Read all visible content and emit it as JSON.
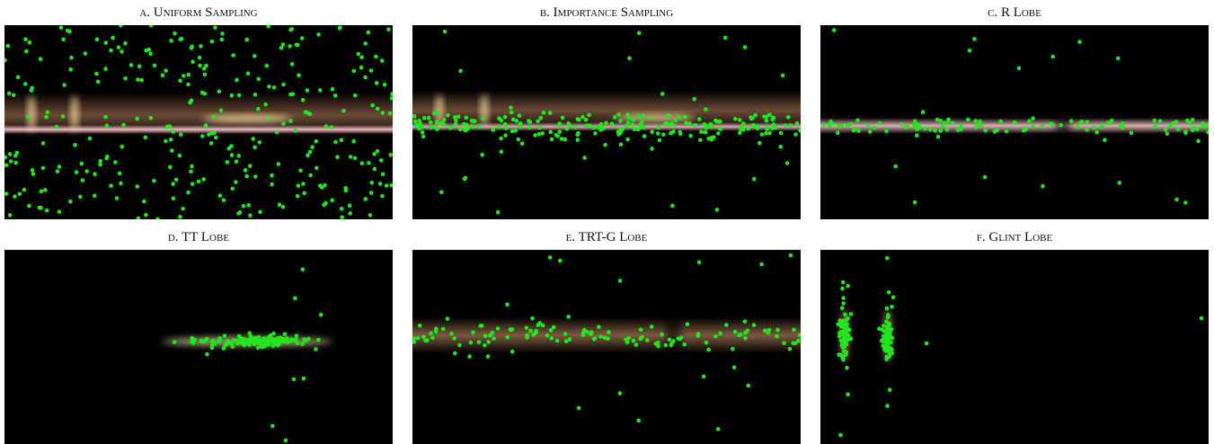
{
  "figure": {
    "panels": [
      {
        "caption": "a. Uniform Sampling"
      },
      {
        "caption": "b. Importance Sampling"
      },
      {
        "caption": "c. R Lobe"
      },
      {
        "caption": "d. TT Lobe"
      },
      {
        "caption": "e. TRT-G Lobe"
      },
      {
        "caption": "f. Glint Lobe"
      }
    ]
  }
}
